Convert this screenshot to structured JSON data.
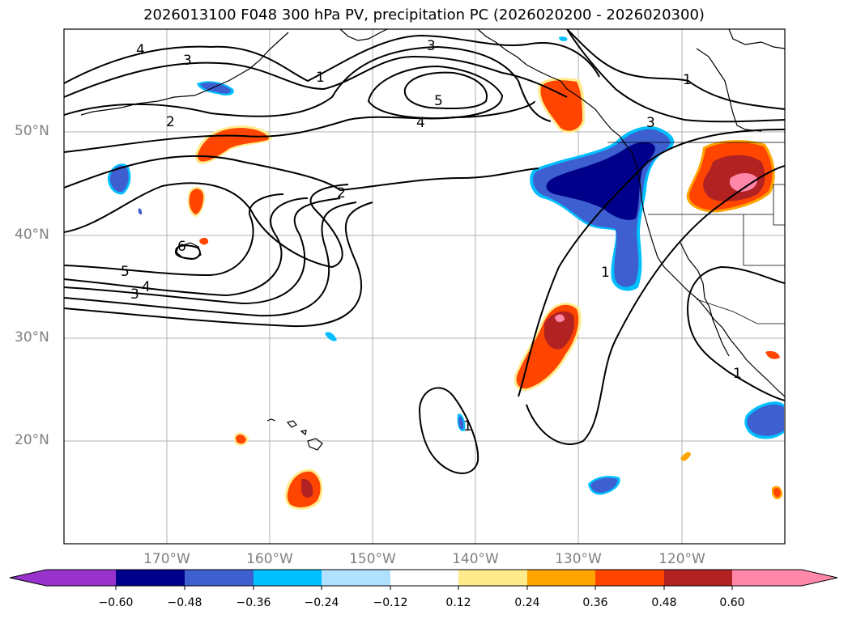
{
  "title": "2026013100 F048 300 hPa PV, precipitation PC (2026020200 - 2026020300)",
  "latitude_labels": [
    "50°N",
    "40°N",
    "30°N",
    "20°N"
  ],
  "longitude_labels": [
    "170°W",
    "160°W",
    "150°W",
    "140°W",
    "130°W",
    "120°W"
  ],
  "pv_contour_labels": [
    "4",
    "3",
    "3",
    "1",
    "5",
    "4",
    "2",
    "2",
    "3",
    "6",
    "5",
    "4",
    "3",
    "1",
    "1",
    "1",
    "1"
  ],
  "colorbar": {
    "tick_labels": [
      "−0.60",
      "−0.48",
      "−0.36",
      "−0.24",
      "−0.12",
      "0.12",
      "0.24",
      "0.36",
      "0.48",
      "0.60"
    ],
    "colors": [
      "#9932cc",
      "#00008b",
      "#3d5fcf",
      "#00bfff",
      "#b0e2ff",
      "#ffffff",
      "#ffeb8c",
      "#ffa500",
      "#ff4500",
      "#b22222",
      "#ff88aa"
    ]
  }
}
